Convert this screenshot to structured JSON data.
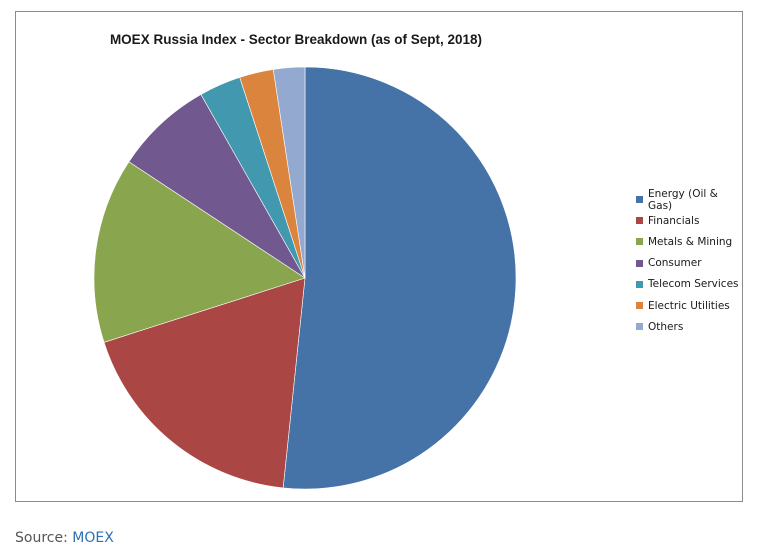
{
  "chart_data": {
    "type": "pie",
    "title": "MOEX Russia Index - Sector Breakdown (as of Sept, 2018)",
    "categories": [
      "Energy (Oil & Gas)",
      "Financials",
      "Metals & Mining",
      "Consumer",
      "Telecom Services",
      "Electric Utilities",
      "Others"
    ],
    "values": [
      51.6,
      18.4,
      14.2,
      7.5,
      3.2,
      2.6,
      2.4
    ],
    "unit": "%",
    "colors": [
      "#4572a7",
      "#aa4643",
      "#89a54e",
      "#71588f",
      "#4198af",
      "#db843d",
      "#93a9cf"
    ],
    "legend_position": "right",
    "start_angle_deg": 0,
    "direction": "clockwise"
  },
  "source": {
    "label": "Source: ",
    "link_text": "MOEX"
  }
}
